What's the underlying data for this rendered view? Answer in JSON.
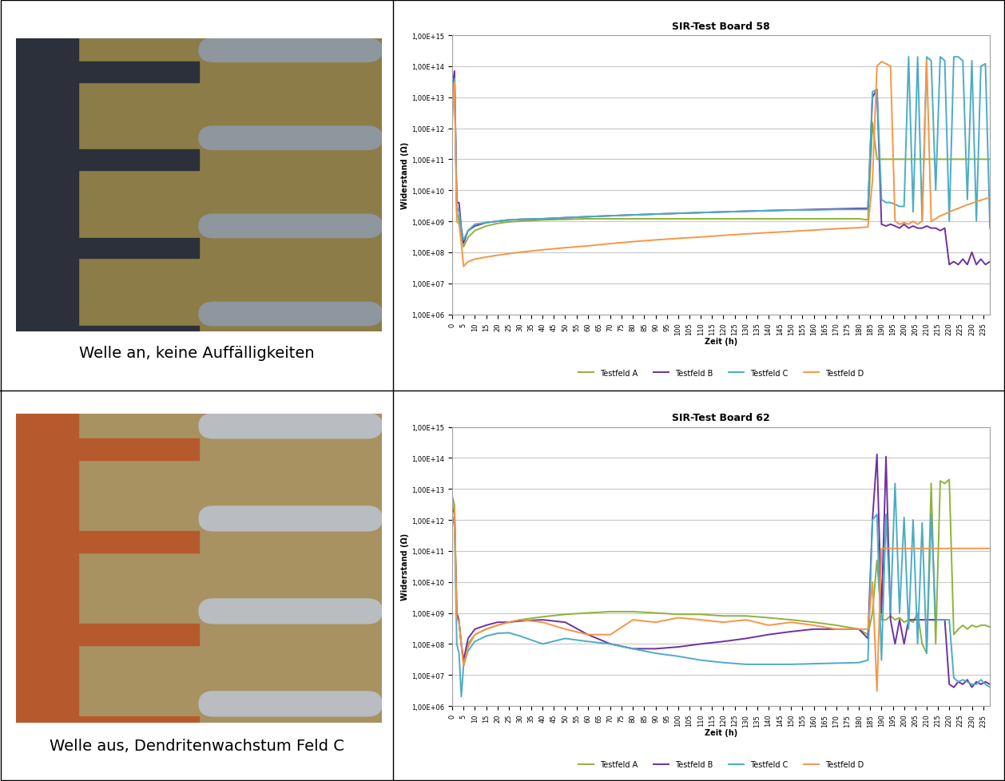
{
  "captions": [
    "Welle an, keine Auffälligkeiten",
    "Welle aus, Dendritenwachstum Feld C"
  ],
  "chart_data": [
    {
      "type": "line",
      "title": "SIR-Test Board 58",
      "xlabel": "Zeit (h)",
      "ylabel": "Widerstand (Ω)",
      "log": "y",
      "grid": "y",
      "legend": "bottom",
      "xlim": [
        0,
        238
      ],
      "ylim": [
        1000000.0,
        1000000000000000.0
      ],
      "xticks": [
        0,
        5,
        10,
        15,
        20,
        25,
        30,
        35,
        40,
        45,
        50,
        55,
        60,
        65,
        70,
        75,
        80,
        85,
        90,
        95,
        100,
        105,
        110,
        115,
        120,
        125,
        130,
        135,
        140,
        145,
        150,
        155,
        160,
        165,
        170,
        175,
        180,
        185,
        190,
        195,
        200,
        205,
        210,
        215,
        220,
        225,
        230,
        235
      ],
      "yticks": [
        {
          "value": 1000000.0,
          "label": "1,00E+06"
        },
        {
          "value": 10000000.0,
          "label": "1,00E+07"
        },
        {
          "value": 100000000.0,
          "label": "1,00E+08"
        },
        {
          "value": 1000000000.0,
          "label": "1,00E+09"
        },
        {
          "value": 10000000000.0,
          "label": "1,00E+10"
        },
        {
          "value": 100000000000.0,
          "label": "1,00E+11"
        },
        {
          "value": 1000000000000.0,
          "label": "1,00E+12"
        },
        {
          "value": 10000000000000.0,
          "label": "1,00E+13"
        },
        {
          "value": 100000000000000.0,
          "label": "1,00E+14"
        },
        {
          "value": 1000000000000000.0,
          "label": "1,00E+15"
        }
      ],
      "x": [
        0,
        1,
        2,
        3,
        4,
        5,
        7,
        10,
        15,
        20,
        25,
        30,
        40,
        50,
        60,
        70,
        80,
        90,
        100,
        110,
        120,
        130,
        140,
        150,
        160,
        170,
        180,
        184,
        186,
        188,
        190,
        192,
        194,
        196,
        198,
        200,
        202,
        204,
        206,
        208,
        210,
        212,
        214,
        216,
        218,
        220,
        222,
        224,
        226,
        228,
        230,
        232,
        234,
        236,
        238
      ],
      "series": [
        {
          "name": "Testfeld A",
          "color": "#8db33a",
          "values": [
            10000000000000.0,
            50000000000000.0,
            2000000000.0,
            1000000000.0,
            400000000.0,
            150000000.0,
            300000000.0,
            500000000.0,
            700000000.0,
            850000000.0,
            950000000.0,
            1000000000.0,
            1100000000.0,
            1150000000.0,
            1200000000.0,
            1200000000.0,
            1200000000.0,
            1200000000.0,
            1200000000.0,
            1200000000.0,
            1200000000.0,
            1200000000.0,
            1200000000.0,
            1200000000.0,
            1200000000.0,
            1200000000.0,
            1200000000.0,
            1100000000.0,
            1500000000000.0,
            100000000000.0,
            100000000000.0,
            100000000000.0,
            100000000000.0,
            100000000000.0,
            100000000000.0,
            100000000000.0,
            100000000000.0,
            100000000000.0,
            100000000000.0,
            100000000000.0,
            100000000000.0,
            100000000000.0,
            100000000000.0,
            100000000000.0,
            100000000000.0,
            100000000000.0,
            100000000000.0,
            100000000000.0,
            100000000000.0,
            100000000000.0,
            100000000000.0,
            100000000000.0,
            100000000000.0,
            100000000000.0,
            100000000000.0
          ]
        },
        {
          "name": "Testfeld B",
          "color": "#7030a0",
          "values": [
            20000000000000.0,
            70000000000000.0,
            4000000000.0,
            4000000000.0,
            600000000.0,
            200000000.0,
            500000000.0,
            700000000.0,
            900000000.0,
            1000000000.0,
            1100000000.0,
            1150000000.0,
            1200000000.0,
            1300000000.0,
            1400000000.0,
            1500000000.0,
            1600000000.0,
            1700000000.0,
            1800000000.0,
            1900000000.0,
            2000000000.0,
            2100000000.0,
            2200000000.0,
            2300000000.0,
            2400000000.0,
            2500000000.0,
            2600000000.0,
            2600000000.0,
            10000000000000.0,
            18000000000000.0,
            800000000.0,
            700000000.0,
            800000000.0,
            700000000.0,
            600000000.0,
            800000000.0,
            600000000.0,
            700000000.0,
            600000000.0,
            600000000.0,
            700000000.0,
            600000000.0,
            600000000.0,
            500000000.0,
            600000000.0,
            40000000.0,
            50000000.0,
            40000000.0,
            60000000.0,
            40000000.0,
            100000000.0,
            40000000.0,
            60000000.0,
            40000000.0,
            50000000.0
          ]
        },
        {
          "name": "Testfeld C",
          "color": "#4bacc6",
          "values": [
            10000000000000.0,
            40000000000000.0,
            3000000000.0,
            2000000000.0,
            500000000.0,
            250000000.0,
            500000000.0,
            800000000.0,
            900000000.0,
            1000000000.0,
            1100000000.0,
            1150000000.0,
            1200000000.0,
            1300000000.0,
            1400000000.0,
            1500000000.0,
            1600000000.0,
            1700000000.0,
            1800000000.0,
            1900000000.0,
            2000000000.0,
            2100000000.0,
            2200000000.0,
            2300000000.0,
            2300000000.0,
            2400000000.0,
            2400000000.0,
            2400000000.0,
            15000000000000.0,
            18000000000000.0,
            5000000000.0,
            4000000000.0,
            4000000000.0,
            3500000000.0,
            3000000000.0,
            3000000000.0,
            200000000000000.0,
            2000000000.0,
            200000000000000.0,
            1000000000.0,
            200000000000000.0,
            150000000000000.0,
            10000000000.0,
            200000000000000.0,
            150000000000000.0,
            1000000000.0,
            200000000000000.0,
            200000000000000.0,
            150000000000000.0,
            5000000000.0,
            150000000000000.0,
            1000000000.0,
            100000000000000.0,
            120000000000000.0,
            600000000.0
          ]
        },
        {
          "name": "Testfeld D",
          "color": "#f79646",
          "values": [
            2000000000000.0,
            30000000000000.0,
            1000000000.0,
            800000000.0,
            200000000.0,
            35000000.0,
            50000000.0,
            60000000.0,
            70000000.0,
            80000000.0,
            90000000.0,
            100000000.0,
            120000000.0,
            140000000.0,
            160000000.0,
            190000000.0,
            220000000.0,
            250000000.0,
            280000000.0,
            310000000.0,
            350000000.0,
            390000000.0,
            430000000.0,
            470000000.0,
            520000000.0,
            570000000.0,
            620000000.0,
            650000000.0,
            20000000000.0,
            100000000000000.0,
            140000000000000.0,
            120000000000000.0,
            100000000000000.0,
            1000000000.0,
            800000000.0,
            900000000.0,
            800000000.0,
            1000000000.0,
            800000000.0,
            1000000000.0,
            160000000000000.0,
            1000000000.0,
            1200000000.0,
            1500000000.0,
            1700000000.0,
            2000000000.0,
            2300000000.0,
            2600000000.0,
            3000000000.0,
            3400000000.0,
            3800000000.0,
            4300000000.0,
            4800000000.0,
            5300000000.0,
            6000000000.0
          ]
        }
      ]
    },
    {
      "type": "line",
      "title": "SIR-Test Board 62",
      "xlabel": "Zeit (h)",
      "ylabel": "Widerstand (Ω)",
      "log": "y",
      "grid": "y",
      "legend": "bottom",
      "xlim": [
        0,
        238
      ],
      "ylim": [
        1000000.0,
        1000000000000000.0
      ],
      "xticks": [
        0,
        5,
        10,
        15,
        20,
        25,
        30,
        35,
        40,
        45,
        50,
        55,
        60,
        65,
        70,
        75,
        80,
        85,
        90,
        95,
        100,
        105,
        110,
        115,
        120,
        125,
        130,
        135,
        140,
        145,
        150,
        155,
        160,
        165,
        170,
        175,
        180,
        185,
        190,
        195,
        200,
        205,
        210,
        215,
        220,
        225,
        230,
        235
      ],
      "yticks": [
        {
          "value": 1000000.0,
          "label": "1,00E+06"
        },
        {
          "value": 10000000.0,
          "label": "1,00E+07"
        },
        {
          "value": 100000000.0,
          "label": "1,00E+08"
        },
        {
          "value": 1000000000.0,
          "label": "1,00E+09"
        },
        {
          "value": 10000000000.0,
          "label": "1,00E+10"
        },
        {
          "value": 100000000000.0,
          "label": "1,00E+11"
        },
        {
          "value": 1000000000000.0,
          "label": "1,00E+12"
        },
        {
          "value": 10000000000000.0,
          "label": "1,00E+13"
        },
        {
          "value": 100000000000000.0,
          "label": "1,00E+14"
        },
        {
          "value": 1000000000000000.0,
          "label": "1,00E+15"
        }
      ],
      "x": [
        0,
        1,
        2,
        3,
        4,
        5,
        7,
        10,
        15,
        20,
        25,
        30,
        40,
        50,
        60,
        70,
        80,
        90,
        100,
        110,
        120,
        130,
        140,
        150,
        160,
        170,
        180,
        184,
        186,
        188,
        190,
        192,
        194,
        196,
        198,
        200,
        202,
        204,
        206,
        208,
        210,
        212,
        214,
        216,
        218,
        220,
        222,
        224,
        226,
        228,
        230,
        232,
        234,
        236,
        238
      ],
      "series": [
        {
          "name": "Testfeld A",
          "color": "#8db33a",
          "values": [
            6000000000000.0,
            3000000000000.0,
            1000000000.0,
            600000000.0,
            100000000.0,
            20000000.0,
            100000000.0,
            200000000.0,
            300000000.0,
            400000000.0,
            500000000.0,
            600000000.0,
            750000000.0,
            900000000.0,
            1000000000.0,
            1100000000.0,
            1100000000.0,
            1000000000.0,
            900000000.0,
            900000000.0,
            800000000.0,
            800000000.0,
            700000000.0,
            600000000.0,
            500000000.0,
            400000000.0,
            300000000.0,
            200000000.0,
            1000000000.0,
            50000000000.0,
            600000000.0,
            600000000.0,
            800000000.0,
            600000000.0,
            700000000.0,
            500000000.0,
            600000000.0,
            500000000.0,
            1000000000.0,
            100000000.0,
            50000000.0,
            15000000000000.0,
            100000000.0,
            18000000000000.0,
            15000000000000.0,
            20000000000000.0,
            200000000.0,
            300000000.0,
            400000000.0,
            300000000.0,
            400000000.0,
            350000000.0,
            400000000.0,
            400000000.0,
            350000000.0
          ]
        },
        {
          "name": "Testfeld B",
          "color": "#7030a0",
          "values": [
            3000000000000.0,
            1500000000000.0,
            1000000000.0,
            500000000.0,
            100000000.0,
            30000000.0,
            150000000.0,
            300000000.0,
            400000000.0,
            500000000.0,
            500000000.0,
            550000000.0,
            600000000.0,
            500000000.0,
            200000000.0,
            100000000.0,
            70000000.0,
            70000000.0,
            80000000.0,
            100000000.0,
            120000000.0,
            150000000.0,
            200000000.0,
            250000000.0,
            300000000.0,
            300000000.0,
            300000000.0,
            150000000.0,
            1000000000000.0,
            130000000000000.0,
            1000000000.0,
            110000000000000.0,
            600000000.0,
            100000000.0,
            600000000.0,
            100000000.0,
            600000000.0,
            600000000.0,
            600000000.0,
            600000000.0,
            600000000.0,
            600000000.0,
            600000000.0,
            600000000.0,
            600000000.0,
            5000000.0,
            4000000.0,
            6000000.0,
            5000000.0,
            7000000.0,
            4000000.0,
            6000000.0,
            5000000.0,
            6000000.0,
            5000000.0
          ]
        },
        {
          "name": "Testfeld C",
          "color": "#4bacc6",
          "values": [
            1500000000000.0,
            600000000000.0,
            100000000.0,
            50000000.0,
            2000000.0,
            20000000.0,
            60000000.0,
            120000000.0,
            180000000.0,
            220000000.0,
            230000000.0,
            180000000.0,
            100000000.0,
            150000000.0,
            120000000.0,
            100000000.0,
            70000000.0,
            50000000.0,
            40000000.0,
            30000000.0,
            25000000.0,
            22000000.0,
            22000000.0,
            22000000.0,
            23000000.0,
            24000000.0,
            25000000.0,
            30000000.0,
            1000000000000.0,
            1500000000000.0,
            30000000.0,
            1500000000000.0,
            1000000000.0,
            15000000000000.0,
            1000000000.0,
            1200000000000.0,
            300000000.0,
            1000000000000.0,
            100000000.0,
            800000000000.0,
            50000000.0,
            1500000000000.0,
            600000000.0,
            600000000.0,
            600000000.0,
            600000000.0,
            8000000.0,
            6000000.0,
            7000000.0,
            6000000.0,
            5000000.0,
            5000000.0,
            7000000.0,
            5000000.0,
            4000000.0
          ]
        },
        {
          "name": "Testfeld D",
          "color": "#f79646",
          "values": [
            4000000000000.0,
            2000000000000.0,
            700000000.0,
            500000000.0,
            100000000.0,
            20000000.0,
            80000000.0,
            200000000.0,
            300000000.0,
            400000000.0,
            500000000.0,
            600000000.0,
            500000000.0,
            300000000.0,
            200000000.0,
            200000000.0,
            600000000.0,
            500000000.0,
            700000000.0,
            600000000.0,
            500000000.0,
            600000000.0,
            400000000.0,
            500000000.0,
            400000000.0,
            300000000.0,
            300000000.0,
            300000000.0,
            10000000000.0,
            3000000.0,
            120000000000.0,
            120000000000.0,
            120000000000.0,
            120000000000.0,
            120000000000.0,
            120000000000.0,
            120000000000.0,
            120000000000.0,
            120000000000.0,
            120000000000.0,
            120000000000.0,
            120000000000.0,
            120000000000.0,
            120000000000.0,
            120000000000.0,
            120000000000.0,
            120000000000.0,
            120000000000.0,
            120000000000.0,
            120000000000.0,
            120000000000.0,
            120000000000.0,
            120000000000.0,
            120000000000.0,
            120000000000.0
          ]
        }
      ]
    }
  ]
}
